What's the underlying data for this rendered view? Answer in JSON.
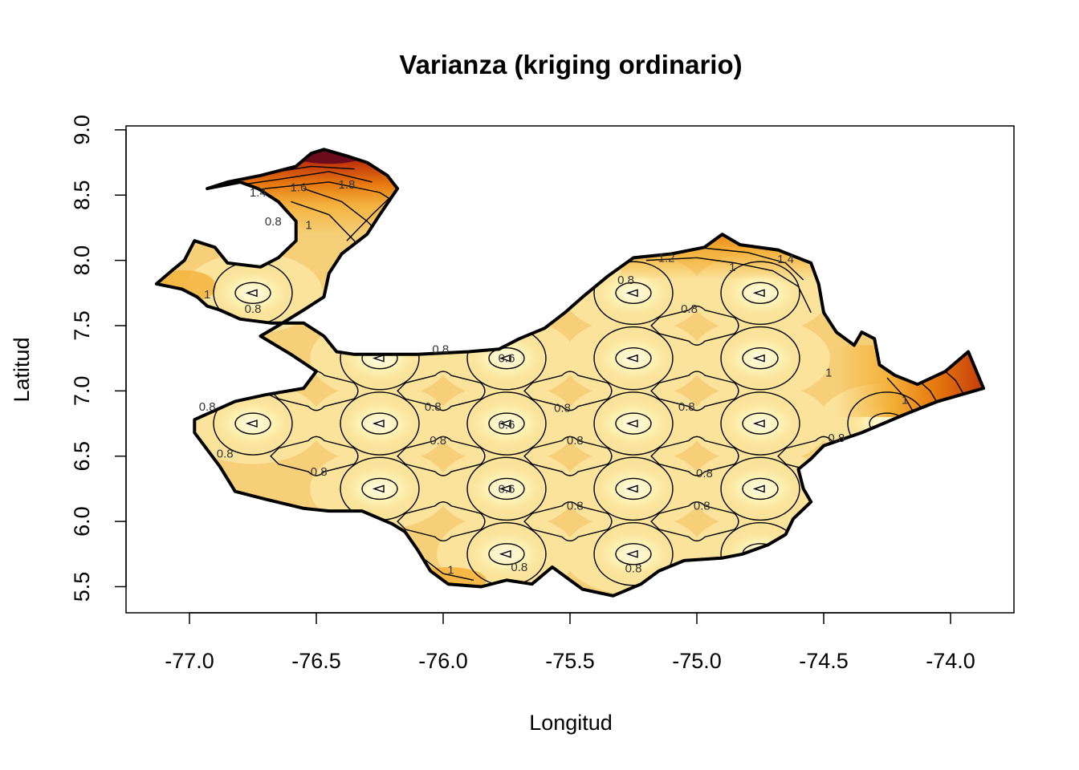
{
  "chart_data": {
    "type": "heatmap",
    "title": "Varianza (kriging ordinario)",
    "xlabel": "Longitud",
    "ylabel": "Latitud",
    "xlim": [
      -77.25,
      -73.75
    ],
    "ylim": [
      5.3,
      9.03
    ],
    "x_ticks": [
      "-77.0",
      "-76.5",
      "-76.0",
      "-75.5",
      "-75.0",
      "-74.5",
      "-74.0"
    ],
    "x_tick_values": [
      -77.0,
      -76.5,
      -76.0,
      -75.5,
      -75.0,
      -74.5,
      -74.0
    ],
    "y_ticks": [
      "5.5",
      "6.0",
      "6.5",
      "7.0",
      "7.5",
      "8.0",
      "8.5",
      "9.0"
    ],
    "y_tick_values": [
      5.5,
      6.0,
      6.5,
      7.0,
      7.5,
      8.0,
      8.5,
      9.0
    ],
    "grid": false,
    "legend": "none",
    "colors": {
      "lowest": "#fdf3b8",
      "low": "#fbe39b",
      "mid": "#f6cf78",
      "midhigh": "#f4b13a",
      "high": "#e7790f",
      "veryhigh": "#c0360c",
      "max": "#6b0b1c",
      "outline": "#000000"
    },
    "sample_points": [
      [
        -76.75,
        7.75
      ],
      [
        -76.25,
        7.25
      ],
      [
        -75.75,
        7.25
      ],
      [
        -75.25,
        7.75
      ],
      [
        -74.75,
        7.75
      ],
      [
        -75.25,
        7.25
      ],
      [
        -74.75,
        7.25
      ],
      [
        -76.75,
        6.75
      ],
      [
        -76.25,
        6.75
      ],
      [
        -75.75,
        6.75
      ],
      [
        -75.25,
        6.75
      ],
      [
        -74.75,
        6.75
      ],
      [
        -74.25,
        6.75
      ],
      [
        -76.25,
        6.25
      ],
      [
        -75.75,
        6.25
      ],
      [
        -75.25,
        6.25
      ],
      [
        -74.75,
        6.25
      ],
      [
        -75.75,
        5.75
      ],
      [
        -75.25,
        5.75
      ],
      [
        -74.75,
        5.75
      ]
    ],
    "contour_labels": [
      {
        "text": "1.4",
        "lon": -76.73,
        "lat": 8.52
      },
      {
        "text": "1.6",
        "lon": -76.57,
        "lat": 8.56
      },
      {
        "text": "1.8",
        "lon": -76.38,
        "lat": 8.58
      },
      {
        "text": "0.8",
        "lon": -76.67,
        "lat": 8.3
      },
      {
        "text": "1",
        "lon": -76.53,
        "lat": 8.27
      },
      {
        "text": "1",
        "lon": -76.93,
        "lat": 7.74
      },
      {
        "text": "0.8",
        "lon": -76.75,
        "lat": 7.63
      },
      {
        "text": "1.2",
        "lon": -75.12,
        "lat": 8.02
      },
      {
        "text": "1",
        "lon": -74.86,
        "lat": 7.95
      },
      {
        "text": "1.4",
        "lon": -74.65,
        "lat": 8.01
      },
      {
        "text": "0.8",
        "lon": -75.28,
        "lat": 7.85
      },
      {
        "text": "0.8",
        "lon": -75.03,
        "lat": 7.63
      },
      {
        "text": "0.8",
        "lon": -76.01,
        "lat": 7.32
      },
      {
        "text": "0.6",
        "lon": -75.75,
        "lat": 7.25
      },
      {
        "text": "1",
        "lon": -74.48,
        "lat": 7.14
      },
      {
        "text": "0.8",
        "lon": -76.93,
        "lat": 6.88
      },
      {
        "text": "0.8",
        "lon": -76.04,
        "lat": 6.88
      },
      {
        "text": "0.8",
        "lon": -75.53,
        "lat": 6.87
      },
      {
        "text": "0.8",
        "lon": -75.04,
        "lat": 6.88
      },
      {
        "text": "0.6",
        "lon": -75.75,
        "lat": 6.74
      },
      {
        "text": "1",
        "lon": -74.18,
        "lat": 6.93
      },
      {
        "text": "0.8",
        "lon": -74.45,
        "lat": 6.64
      },
      {
        "text": "0.8",
        "lon": -76.02,
        "lat": 6.62
      },
      {
        "text": "0.8",
        "lon": -75.48,
        "lat": 6.62
      },
      {
        "text": "0.8",
        "lon": -76.86,
        "lat": 6.52
      },
      {
        "text": "0.8",
        "lon": -76.49,
        "lat": 6.38
      },
      {
        "text": "0.8",
        "lon": -74.97,
        "lat": 6.37
      },
      {
        "text": "0.6",
        "lon": -75.75,
        "lat": 6.25
      },
      {
        "text": "0.8",
        "lon": -75.48,
        "lat": 6.12
      },
      {
        "text": "0.8",
        "lon": -74.98,
        "lat": 6.12
      },
      {
        "text": "0.8",
        "lon": -75.7,
        "lat": 5.65
      },
      {
        "text": "0.8",
        "lon": -75.25,
        "lat": 5.64
      },
      {
        "text": "1",
        "lon": -75.97,
        "lat": 5.63
      }
    ],
    "outline": [
      [
        -77.13,
        7.82
      ],
      [
        -77.03,
        7.78
      ],
      [
        -76.97,
        7.72
      ],
      [
        -76.93,
        7.65
      ],
      [
        -76.88,
        7.62
      ],
      [
        -76.8,
        7.55
      ],
      [
        -76.68,
        7.52
      ],
      [
        -76.55,
        7.52
      ],
      [
        -76.47,
        7.42
      ],
      [
        -76.42,
        7.3
      ],
      [
        -76.35,
        7.28
      ],
      [
        -76.1,
        7.28
      ],
      [
        -75.9,
        7.3
      ],
      [
        -75.78,
        7.32
      ],
      [
        -75.7,
        7.4
      ],
      [
        -75.6,
        7.48
      ],
      [
        -75.52,
        7.6
      ],
      [
        -75.45,
        7.72
      ],
      [
        -75.35,
        7.88
      ],
      [
        -75.25,
        8.02
      ],
      [
        -75.1,
        8.05
      ],
      [
        -74.97,
        8.1
      ],
      [
        -74.9,
        8.2
      ],
      [
        -74.83,
        8.12
      ],
      [
        -74.68,
        8.08
      ],
      [
        -74.55,
        7.98
      ],
      [
        -74.52,
        7.82
      ],
      [
        -74.5,
        7.6
      ],
      [
        -74.45,
        7.45
      ],
      [
        -74.38,
        7.35
      ],
      [
        -74.35,
        7.45
      ],
      [
        -74.3,
        7.4
      ],
      [
        -74.28,
        7.2
      ],
      [
        -74.22,
        7.12
      ],
      [
        -74.13,
        7.05
      ],
      [
        -74.02,
        7.15
      ],
      [
        -73.93,
        7.3
      ],
      [
        -73.87,
        7.02
      ],
      [
        -74.05,
        6.92
      ],
      [
        -74.18,
        6.82
      ],
      [
        -74.35,
        6.68
      ],
      [
        -74.5,
        6.58
      ],
      [
        -74.55,
        6.48
      ],
      [
        -74.6,
        6.4
      ],
      [
        -74.58,
        6.25
      ],
      [
        -74.55,
        6.15
      ],
      [
        -74.62,
        6.02
      ],
      [
        -74.65,
        5.9
      ],
      [
        -74.72,
        5.82
      ],
      [
        -74.82,
        5.75
      ],
      [
        -74.9,
        5.72
      ],
      [
        -75.05,
        5.7
      ],
      [
        -75.15,
        5.62
      ],
      [
        -75.22,
        5.52
      ],
      [
        -75.33,
        5.43
      ],
      [
        -75.45,
        5.48
      ],
      [
        -75.5,
        5.55
      ],
      [
        -75.57,
        5.65
      ],
      [
        -75.65,
        5.52
      ],
      [
        -75.75,
        5.55
      ],
      [
        -75.85,
        5.5
      ],
      [
        -75.98,
        5.52
      ],
      [
        -76.05,
        5.62
      ],
      [
        -76.1,
        5.78
      ],
      [
        -76.15,
        5.92
      ],
      [
        -76.2,
        5.98
      ],
      [
        -76.32,
        6.08
      ],
      [
        -76.45,
        6.08
      ],
      [
        -76.55,
        6.1
      ],
      [
        -76.7,
        6.17
      ],
      [
        -76.82,
        6.23
      ],
      [
        -76.88,
        6.42
      ],
      [
        -76.93,
        6.55
      ],
      [
        -76.98,
        6.68
      ],
      [
        -76.98,
        6.78
      ],
      [
        -76.82,
        6.92
      ],
      [
        -76.7,
        6.97
      ],
      [
        -76.55,
        7.02
      ],
      [
        -76.5,
        7.15
      ],
      [
        -76.6,
        7.28
      ],
      [
        -76.72,
        7.42
      ],
      [
        -76.65,
        7.5
      ],
      [
        -76.55,
        7.62
      ],
      [
        -76.47,
        7.72
      ],
      [
        -76.45,
        7.9
      ],
      [
        -76.4,
        8.05
      ],
      [
        -76.3,
        8.2
      ],
      [
        -76.25,
        8.35
      ],
      [
        -76.18,
        8.55
      ],
      [
        -76.22,
        8.65
      ],
      [
        -76.3,
        8.75
      ],
      [
        -76.38,
        8.8
      ],
      [
        -76.47,
        8.85
      ],
      [
        -76.52,
        8.82
      ],
      [
        -76.58,
        8.72
      ],
      [
        -76.72,
        8.65
      ],
      [
        -76.85,
        8.6
      ],
      [
        -76.93,
        8.55
      ],
      [
        -76.8,
        8.6
      ],
      [
        -76.73,
        8.55
      ],
      [
        -76.65,
        8.45
      ],
      [
        -76.58,
        8.3
      ],
      [
        -76.58,
        8.15
      ],
      [
        -76.65,
        8.02
      ],
      [
        -76.72,
        7.95
      ],
      [
        -76.85,
        7.98
      ],
      [
        -76.9,
        8.1
      ],
      [
        -76.98,
        8.15
      ],
      [
        -77.02,
        8.0
      ],
      [
        -77.07,
        7.92
      ]
    ]
  }
}
